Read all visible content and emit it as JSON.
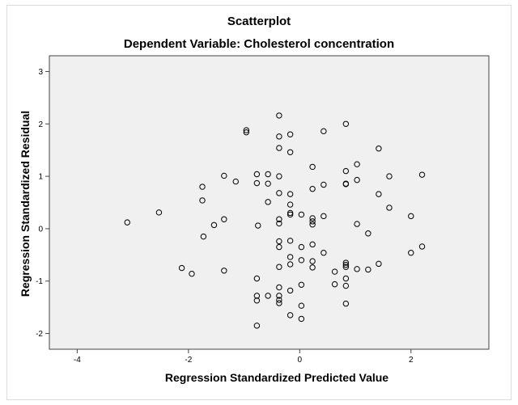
{
  "chart_data": {
    "type": "scatter",
    "title": "Scatterplot",
    "subtitle": "Dependent Variable: Cholesterol concentration",
    "xlabel": "Regression Standardized Predicted Value",
    "ylabel": "Regression Standardized Residual",
    "xlim": [
      -4.5,
      3.4
    ],
    "ylim": [
      -2.3,
      3.3
    ],
    "x_ticks": [
      -4,
      -2,
      0,
      2
    ],
    "y_ticks": [
      -2,
      -1,
      0,
      1,
      2,
      3
    ],
    "grid": false,
    "plot_background": "#f0f0f0",
    "marker_color": "#000000",
    "points": [
      {
        "x": -3.1,
        "y": 0.12
      },
      {
        "x": -2.53,
        "y": 0.31
      },
      {
        "x": -2.12,
        "y": -0.75
      },
      {
        "x": -1.94,
        "y": -0.86
      },
      {
        "x": -1.75,
        "y": 0.8
      },
      {
        "x": -1.75,
        "y": 0.54
      },
      {
        "x": -1.73,
        "y": -0.15
      },
      {
        "x": -1.54,
        "y": 0.07
      },
      {
        "x": -1.36,
        "y": 1.01
      },
      {
        "x": -1.36,
        "y": 0.18
      },
      {
        "x": -1.36,
        "y": -0.8
      },
      {
        "x": -1.15,
        "y": 0.9
      },
      {
        "x": -0.96,
        "y": 1.88
      },
      {
        "x": -0.96,
        "y": 1.84
      },
      {
        "x": -0.77,
        "y": 1.04
      },
      {
        "x": -0.77,
        "y": 0.87
      },
      {
        "x": -0.75,
        "y": 0.06
      },
      {
        "x": -0.77,
        "y": -0.95
      },
      {
        "x": -0.77,
        "y": -1.28
      },
      {
        "x": -0.77,
        "y": -1.37
      },
      {
        "x": -0.77,
        "y": -1.85
      },
      {
        "x": -0.57,
        "y": 1.04
      },
      {
        "x": -0.57,
        "y": 0.86
      },
      {
        "x": -0.57,
        "y": 0.51
      },
      {
        "x": -0.57,
        "y": -1.28
      },
      {
        "x": -0.37,
        "y": 2.16
      },
      {
        "x": -0.37,
        "y": 1.76
      },
      {
        "x": -0.37,
        "y": 1.54
      },
      {
        "x": -0.37,
        "y": 1.0
      },
      {
        "x": -0.37,
        "y": 0.68
      },
      {
        "x": -0.37,
        "y": 0.18
      },
      {
        "x": -0.37,
        "y": 0.1
      },
      {
        "x": -0.37,
        "y": -0.24
      },
      {
        "x": -0.37,
        "y": -0.35
      },
      {
        "x": -0.37,
        "y": -0.73
      },
      {
        "x": -0.37,
        "y": -1.12
      },
      {
        "x": -0.37,
        "y": -1.28
      },
      {
        "x": -0.37,
        "y": -1.36
      },
      {
        "x": -0.37,
        "y": -1.42
      },
      {
        "x": -0.17,
        "y": 1.8
      },
      {
        "x": -0.17,
        "y": 1.46
      },
      {
        "x": -0.17,
        "y": 0.66
      },
      {
        "x": -0.17,
        "y": 0.46
      },
      {
        "x": -0.17,
        "y": 0.3
      },
      {
        "x": -0.17,
        "y": 0.27
      },
      {
        "x": -0.17,
        "y": -0.23
      },
      {
        "x": -0.17,
        "y": -0.54
      },
      {
        "x": -0.17,
        "y": -0.68
      },
      {
        "x": -0.17,
        "y": -1.18
      },
      {
        "x": -0.17,
        "y": -1.65
      },
      {
        "x": 0.03,
        "y": 0.27
      },
      {
        "x": 0.03,
        "y": -0.35
      },
      {
        "x": 0.03,
        "y": -0.6
      },
      {
        "x": 0.03,
        "y": -1.07
      },
      {
        "x": 0.03,
        "y": -1.47
      },
      {
        "x": 0.03,
        "y": -1.72
      },
      {
        "x": 0.23,
        "y": 1.18
      },
      {
        "x": 0.23,
        "y": 0.76
      },
      {
        "x": 0.23,
        "y": 0.2
      },
      {
        "x": 0.23,
        "y": 0.14
      },
      {
        "x": 0.23,
        "y": 0.08
      },
      {
        "x": 0.23,
        "y": -0.3
      },
      {
        "x": 0.23,
        "y": -0.62
      },
      {
        "x": 0.23,
        "y": -0.74
      },
      {
        "x": 0.43,
        "y": 1.86
      },
      {
        "x": 0.43,
        "y": 0.84
      },
      {
        "x": 0.43,
        "y": 0.24
      },
      {
        "x": 0.43,
        "y": -0.46
      },
      {
        "x": 0.63,
        "y": -0.82
      },
      {
        "x": 0.63,
        "y": -1.06
      },
      {
        "x": 0.83,
        "y": 2.0
      },
      {
        "x": 0.83,
        "y": 1.1
      },
      {
        "x": 0.83,
        "y": 0.86
      },
      {
        "x": 0.83,
        "y": 0.85
      },
      {
        "x": 0.83,
        "y": -0.65
      },
      {
        "x": 0.83,
        "y": -0.69
      },
      {
        "x": 0.83,
        "y": -0.73
      },
      {
        "x": 0.83,
        "y": -0.95
      },
      {
        "x": 0.83,
        "y": -1.09
      },
      {
        "x": 0.83,
        "y": -1.43
      },
      {
        "x": 1.03,
        "y": 1.23
      },
      {
        "x": 1.03,
        "y": 0.93
      },
      {
        "x": 1.03,
        "y": 0.09
      },
      {
        "x": 1.03,
        "y": -0.77
      },
      {
        "x": 1.23,
        "y": -0.09
      },
      {
        "x": 1.23,
        "y": -0.78
      },
      {
        "x": 1.42,
        "y": 1.53
      },
      {
        "x": 1.42,
        "y": 0.66
      },
      {
        "x": 1.42,
        "y": -0.67
      },
      {
        "x": 1.61,
        "y": 1.0
      },
      {
        "x": 1.61,
        "y": 0.4
      },
      {
        "x": 2.0,
        "y": 0.24
      },
      {
        "x": 2.0,
        "y": -0.46
      },
      {
        "x": 2.2,
        "y": 1.03
      },
      {
        "x": 2.2,
        "y": -0.34
      }
    ]
  }
}
